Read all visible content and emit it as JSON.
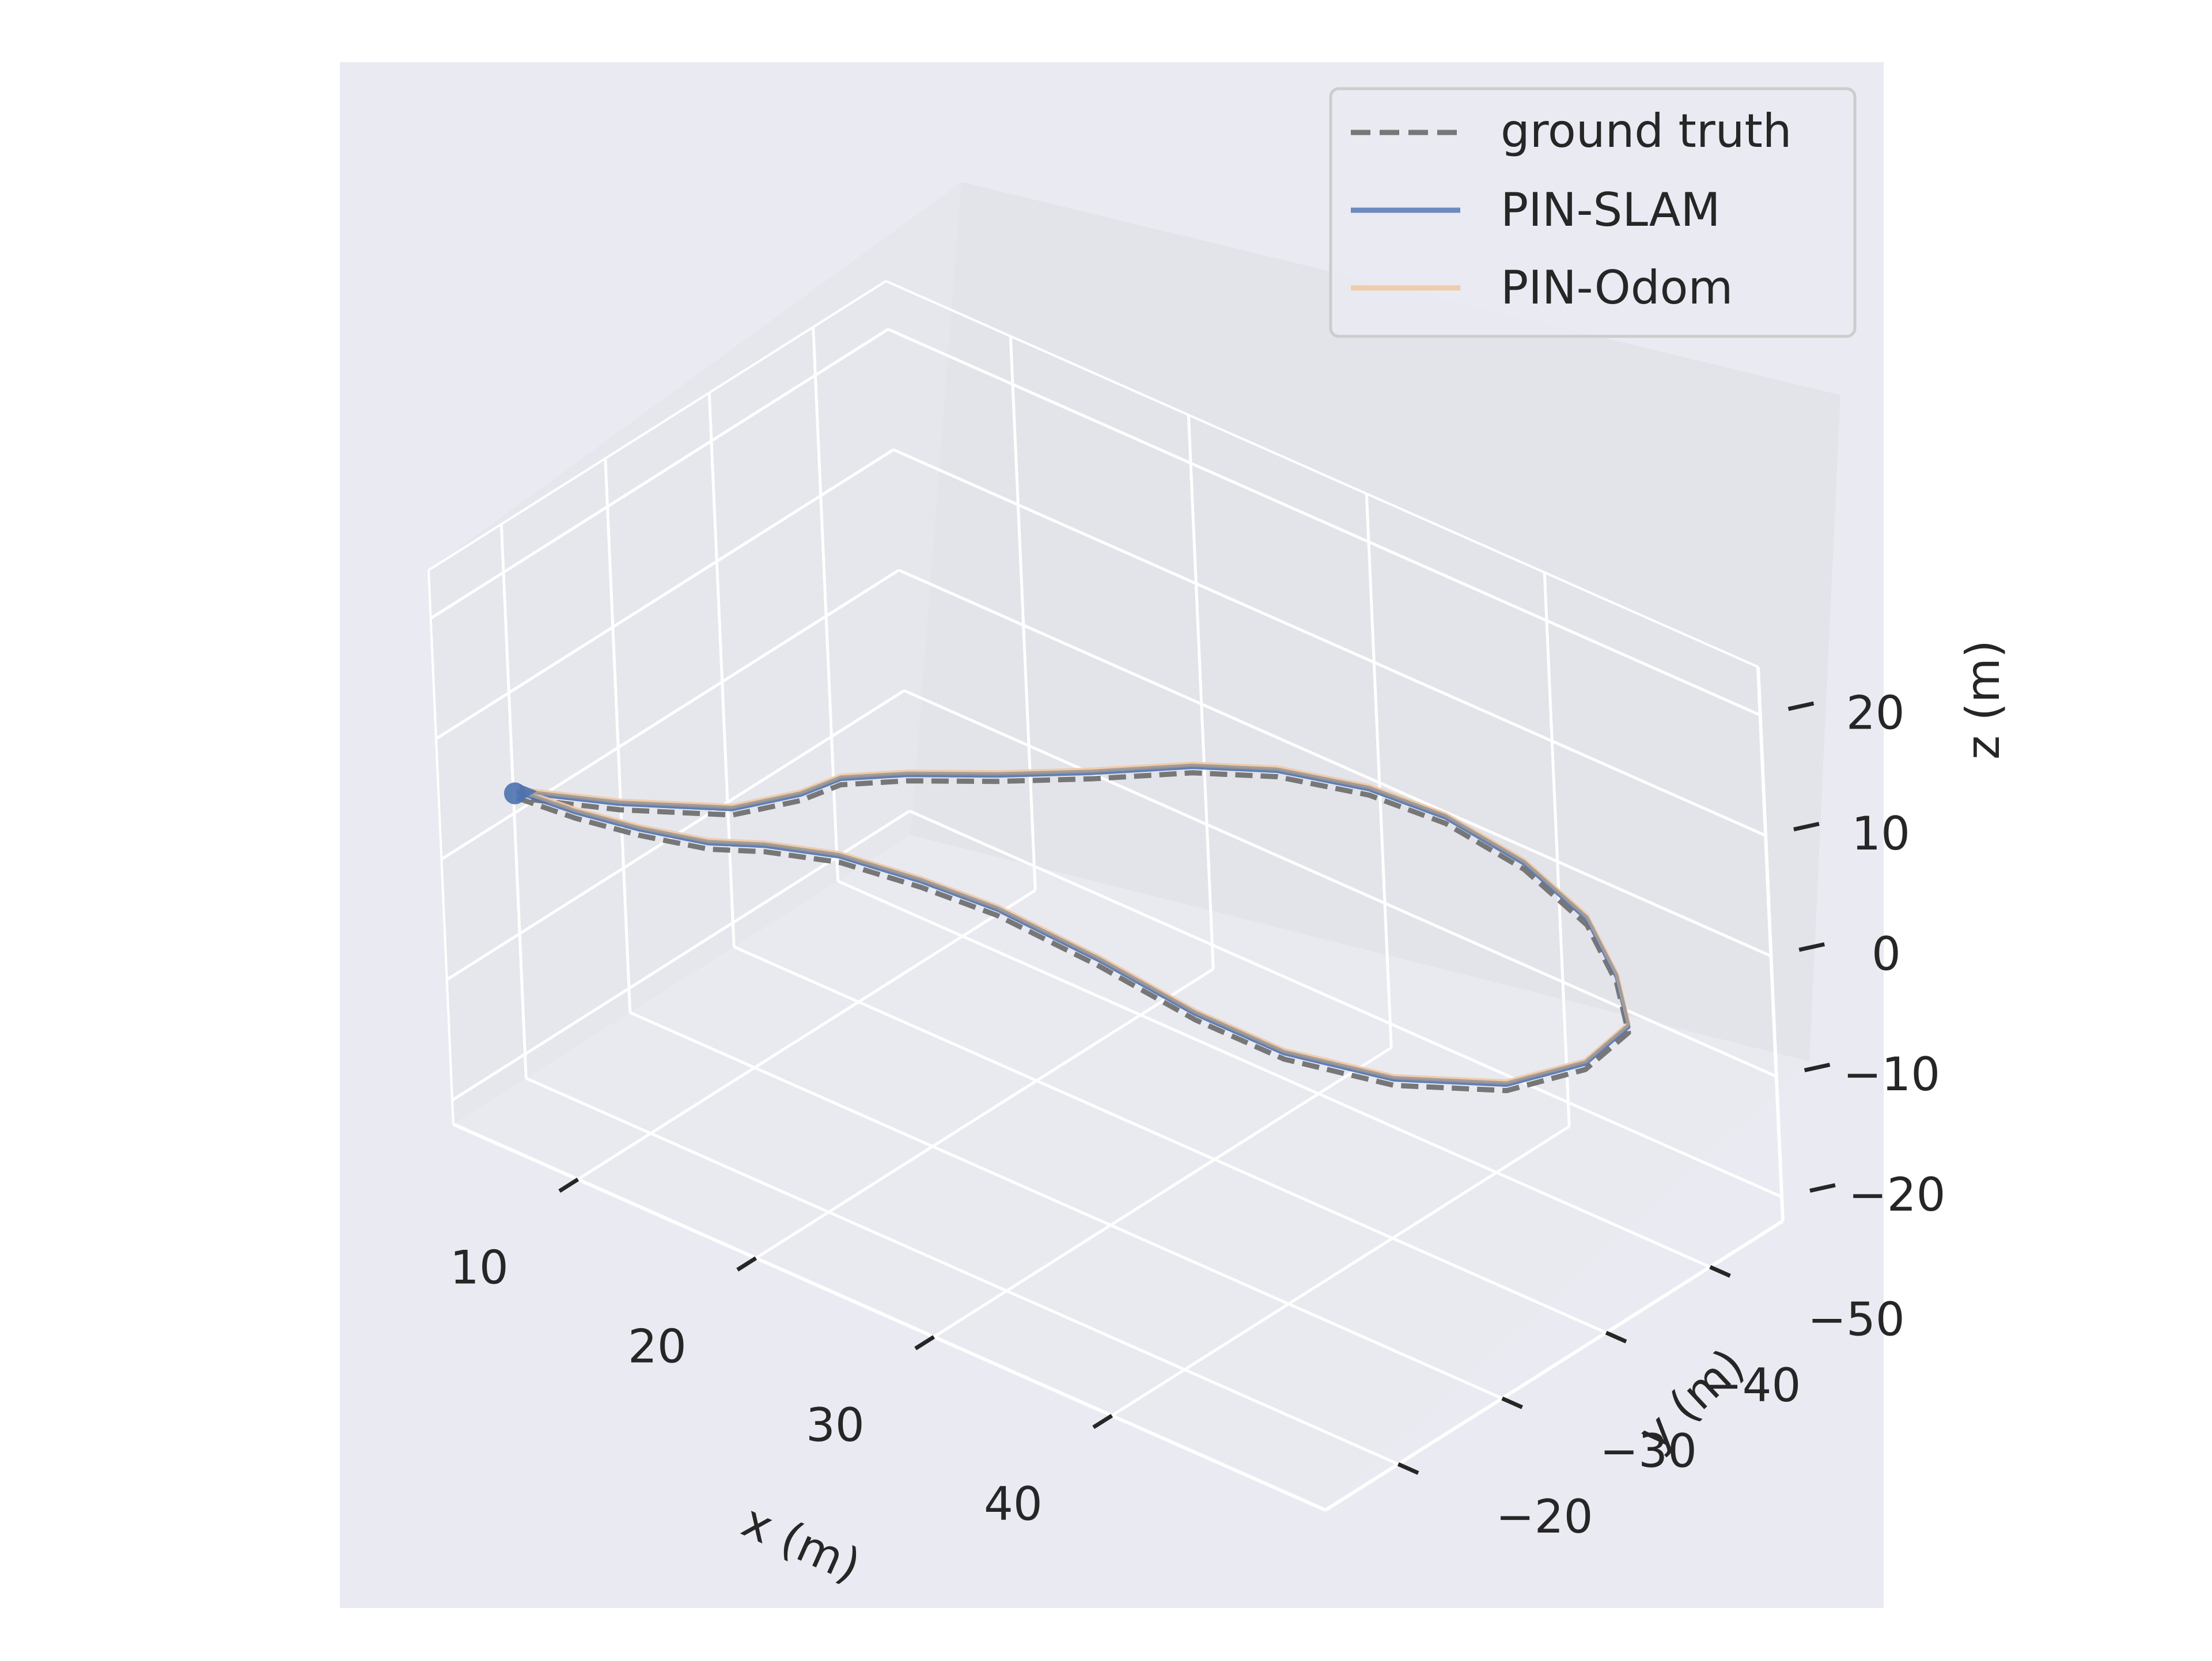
{
  "chart_data": {
    "type": "line",
    "projection": "3d",
    "title": "",
    "xlabel": "x (m)",
    "ylabel": "y (m)",
    "zlabel": "z (m)",
    "xlim": [
      3,
      52
    ],
    "ylim": [
      -57,
      -13
    ],
    "zlim": [
      -22,
      24
    ],
    "xticks": [
      10,
      20,
      30,
      40
    ],
    "yticks": [
      -50,
      -40,
      -30,
      -20
    ],
    "zticks": [
      -20,
      -10,
      0,
      10,
      20
    ],
    "xtick_labels": [
      "10",
      "20",
      "30",
      "40"
    ],
    "ytick_labels": [
      "−50",
      "−40",
      "−30",
      "−20"
    ],
    "ztick_labels": [
      "−20",
      "−10",
      "0",
      "10",
      "20"
    ],
    "grid": true,
    "legend_position": "top-right",
    "series": [
      {
        "name": "ground truth",
        "style": "dashed",
        "color": "#777777",
        "x": [
          2,
          5,
          8,
          11,
          13,
          16,
          20,
          24,
          30,
          36,
          41,
          46,
          50,
          51.5,
          51,
          48,
          44,
          39,
          34,
          30,
          26,
          23,
          20,
          17,
          14,
          12,
          11.5,
          10,
          6,
          2
        ],
        "y": [
          -22,
          -22.5,
          -23.5,
          -25,
          -27,
          -29,
          -30,
          -30.5,
          -30,
          -29,
          -29,
          -31,
          -35,
          -40,
          -45,
          -49,
          -53,
          -55.5,
          -56.5,
          -56,
          -54,
          -51,
          -46.5,
          -42.5,
          -39,
          -36,
          -33,
          -29,
          -25,
          -22
        ],
        "z": [
          0,
          0,
          0,
          0,
          0,
          0,
          0,
          0,
          0,
          0,
          0,
          0,
          0,
          0,
          0,
          0,
          0,
          0,
          0,
          0,
          0,
          0,
          0,
          0,
          0,
          0,
          0,
          0,
          0,
          0
        ]
      },
      {
        "name": "PIN-SLAM",
        "style": "solid",
        "color": "#4c72b0",
        "x": [
          2,
          5,
          8,
          11,
          13,
          16,
          20,
          24,
          30,
          36,
          41,
          46,
          50,
          51.5,
          51,
          48,
          44,
          39,
          34,
          30,
          26,
          23,
          20,
          17,
          14,
          12,
          11.5,
          10,
          6,
          2
        ],
        "y": [
          -22,
          -22.5,
          -23.5,
          -25,
          -27,
          -29,
          -30,
          -30.5,
          -30,
          -29,
          -29,
          -31,
          -35,
          -40,
          -45,
          -49,
          -53,
          -55.5,
          -56.5,
          -56,
          -54,
          -51,
          -46.5,
          -42.5,
          -39,
          -36,
          -33,
          -29,
          -25,
          -22
        ],
        "z": [
          0,
          0,
          0,
          0,
          0,
          0,
          0,
          0,
          0,
          0,
          0,
          0,
          0,
          0,
          0,
          0,
          0,
          0,
          0,
          0,
          0,
          0,
          0,
          0,
          0,
          0,
          0,
          0,
          0,
          0
        ]
      },
      {
        "name": "PIN-Odom",
        "style": "solid",
        "color": "#f0c9a4",
        "x": [
          2,
          5,
          8,
          11,
          13,
          16,
          20,
          24,
          30,
          36,
          41,
          46,
          50,
          51.5,
          51,
          48,
          44,
          39,
          34,
          30,
          26,
          23,
          20,
          17,
          14,
          12,
          11.5,
          10,
          6,
          2
        ],
        "y": [
          -22,
          -22.5,
          -23.5,
          -25,
          -27,
          -29,
          -30,
          -30.5,
          -30,
          -29,
          -29,
          -31,
          -35,
          -40,
          -45,
          -49,
          -53,
          -55.5,
          -56.5,
          -56,
          -54,
          -51,
          -46.5,
          -42.5,
          -39,
          -36,
          -33,
          -29,
          -25,
          -22
        ],
        "z": [
          0,
          0,
          0,
          0,
          0,
          0,
          0,
          0,
          0,
          0,
          0,
          0,
          0,
          0,
          0,
          0,
          0,
          0,
          0,
          0,
          0,
          0,
          0,
          0,
          0,
          0,
          0,
          0,
          0,
          0
        ]
      }
    ],
    "start_marker": {
      "x": 2,
      "y": -22,
      "z": 0,
      "color": "#4c72b0"
    },
    "colors": {
      "background": "#eaeaf2",
      "pane_left": "#e6e6ed",
      "pane_back": "#e3e3ea",
      "pane_floor": "#e9e9f0",
      "grid": "#ffffff",
      "trajectory_overlay": "#999494"
    }
  }
}
